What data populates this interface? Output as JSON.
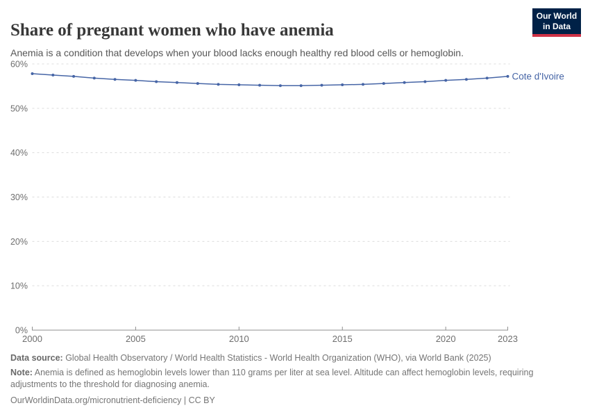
{
  "header": {
    "title": "Share of pregnant women who have anemia",
    "subtitle": "Anemia is a condition that develops when your blood lacks enough healthy red blood cells or hemoglobin.",
    "logo": {
      "line1": "Our World",
      "line2": "in Data"
    }
  },
  "chart_data": {
    "type": "line",
    "title": "Share of pregnant women who have anemia",
    "x": [
      2000,
      2001,
      2002,
      2003,
      2004,
      2005,
      2006,
      2007,
      2008,
      2009,
      2010,
      2011,
      2012,
      2013,
      2014,
      2015,
      2016,
      2017,
      2018,
      2019,
      2020,
      2021,
      2022,
      2023
    ],
    "series": [
      {
        "name": "Cote d'Ivoire",
        "color": "#4665A6",
        "values": [
          57.8,
          57.5,
          57.2,
          56.8,
          56.5,
          56.3,
          56.0,
          55.8,
          55.6,
          55.4,
          55.3,
          55.2,
          55.1,
          55.1,
          55.2,
          55.3,
          55.4,
          55.6,
          55.8,
          56.0,
          56.3,
          56.5,
          56.8,
          57.2
        ]
      }
    ],
    "xlabel": "",
    "ylabel": "",
    "ylim": [
      0,
      60
    ],
    "yticks": [
      0,
      10,
      20,
      30,
      40,
      50,
      60
    ],
    "ytick_suffix": "%",
    "xticks": [
      2000,
      2005,
      2010,
      2015,
      2020,
      2023
    ],
    "grid": "horizontal-dashed",
    "legend": "line-end-label"
  },
  "footer": {
    "source_label": "Data source:",
    "source_text": " Global Health Observatory / World Health Statistics - World Health Organization (WHO), via World Bank (2025)",
    "note_label": "Note:",
    "note_text": " Anemia is defined as hemoglobin levels lower than 110 grams per liter at sea level. Altitude can affect hemoglobin levels, requiring adjustments to the threshold for diagnosing anemia.",
    "link": "OurWorldinData.org/micronutrient-deficiency | CC BY"
  },
  "colors": {
    "line": "#4665A6",
    "grid": "#dcdcdc",
    "axis": "#8f8f8f",
    "tick_label": "#6e6e6e",
    "logo_bg": "#002147",
    "logo_stripe": "#cf3246"
  }
}
